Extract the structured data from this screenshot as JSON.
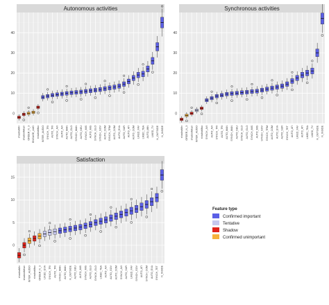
{
  "chart_data": [
    {
      "type": "box",
      "title": "Autonomous activities",
      "ylim": [
        -5,
        50
      ],
      "yticks": [
        0,
        10,
        20,
        30,
        40
      ],
      "categories": [
        "shadowMin",
        "shadowMean",
        "ORDER_N_3",
        "ENGAGE_AUD",
        "shadowMax",
        "INTER_AUDIO",
        "SYNCH_TRI",
        "AUTO_TRI",
        "SYNCH_AVI",
        "AUTO_AVI",
        "AUTO_MAN",
        "AUTO_GLO",
        "SYNCH_MAN",
        "AUTO_NEU",
        "SYNCH_MIS",
        "AUTO_MIS",
        "SYNCH_GLO",
        "SYNCH_GOV",
        "AUTO_COM",
        "SYNCH_TRM",
        "AUTO_COM",
        "AUTO_EXA",
        "AUTO_SUR",
        "AUTO_ATI",
        "AUTO_COM",
        "LIKED_FAV",
        "LIKED_TBA",
        "AUTO_MIN",
        "LIKED_TV",
        "N_OUTSIDE",
        "N_INSIDE"
      ],
      "medians": [
        -2,
        -0.5,
        0,
        0.5,
        3,
        8,
        8.5,
        9,
        9.3,
        9.6,
        9.9,
        10.2,
        10.4,
        10.6,
        10.9,
        11.2,
        11.5,
        11.8,
        12.2,
        12.6,
        13,
        13.5,
        14.5,
        15.8,
        17.5,
        19,
        19.5,
        22,
        26,
        33,
        45
      ],
      "feature_type": [
        "shadow",
        "shadow",
        "unimportant",
        "unimportant",
        "shadow",
        "important",
        "important",
        "important",
        "important",
        "important",
        "important",
        "important",
        "important",
        "important",
        "important",
        "important",
        "important",
        "important",
        "important",
        "important",
        "important",
        "important",
        "important",
        "important",
        "important",
        "important",
        "important",
        "important",
        "important",
        "important",
        "important"
      ]
    },
    {
      "type": "box",
      "title": "Synchronous activities",
      "ylim": [
        -5,
        50
      ],
      "yticks": [
        0,
        10,
        20,
        30,
        40
      ],
      "categories": [
        "shadowMin",
        "ORDER_N_3",
        "shadowMean",
        "INTER_AUDIO",
        "shadowMax",
        "SYNCH_AVI",
        "AUTO_AVI",
        "SYNCH_TRI",
        "AUTO_TRI",
        "AUTO_MAN",
        "SYNCH_MAN",
        "AUTO_NEU",
        "SYNCH_GLO",
        "AUTO_GLO",
        "SYNCH_MIS",
        "AUTO_MIS",
        "SYNCH_GOV",
        "SYNCH_TRM",
        "AUTO_COM",
        "AUTO_EXA",
        "AUTO_SUR",
        "SYNCH_TET",
        "AUTO_ATI",
        "LIKED_FAV",
        "AUTO_ATI",
        "LIKED_TBA",
        "LIKED_TV",
        "N_OUTSIDE",
        "N_INSIDE"
      ],
      "medians": [
        -3,
        -1,
        0,
        1.5,
        2.5,
        6.5,
        7.5,
        8.5,
        9,
        9.5,
        9.8,
        10,
        10.3,
        10.5,
        10.8,
        11,
        11.5,
        12,
        12.5,
        13,
        13.5,
        14.5,
        16,
        17.5,
        19,
        20,
        21,
        30,
        47
      ],
      "feature_type": [
        "shadow",
        "unimportant",
        "shadow",
        "tentative",
        "shadow",
        "important",
        "important",
        "important",
        "important",
        "important",
        "important",
        "important",
        "important",
        "important",
        "important",
        "important",
        "important",
        "important",
        "important",
        "important",
        "important",
        "important",
        "important",
        "important",
        "important",
        "important",
        "important",
        "important",
        "important"
      ]
    },
    {
      "type": "box",
      "title": "Satisfaction",
      "ylim": [
        -4,
        18
      ],
      "yticks": [
        0,
        5,
        10,
        15
      ],
      "categories": [
        "shadowMin",
        "shadowMean",
        "INTER_AUDIO",
        "shadowMax",
        "ORDER_N_3",
        "LIKED_EXA",
        "SYNCH_TRI",
        "AUTO_TRI",
        "SYNCH_MAN",
        "AUTO_MAN",
        "N_OUTSIDE",
        "AUTO_NEU",
        "AUTO_MIS",
        "SYNCH_MIS",
        "AUTO_GLO",
        "SYNCH_GLO",
        "LIKED_TBA",
        "AUTO_AVI",
        "AUTO_GOV",
        "AUTO_COM",
        "SYNCH_AVI",
        "AUTO_SUR",
        "LIKED_FAV",
        "SYNCH_GOV",
        "AUTO_ATI",
        "SYNCH_COM",
        "AUTO_EXA",
        "SYNCH_TET",
        "N_INSIDE"
      ],
      "medians": [
        -2.2,
        0,
        1,
        1.5,
        2,
        2.5,
        2.8,
        3,
        3.2,
        3.4,
        3.6,
        3.8,
        4,
        4.3,
        4.6,
        5,
        5.3,
        5.6,
        6,
        6.4,
        6.8,
        7.2,
        7.6,
        8,
        8.5,
        9,
        9.6,
        10.5,
        15.5
      ],
      "feature_type": [
        "shadow",
        "shadow",
        "unimportant",
        "shadow",
        "unimportant",
        "tentative",
        "tentative",
        "tentative",
        "important",
        "important",
        "important",
        "important",
        "important",
        "important",
        "important",
        "important",
        "important",
        "important",
        "important",
        "important",
        "important",
        "important",
        "important",
        "important",
        "important",
        "important",
        "important",
        "important",
        "important"
      ]
    }
  ],
  "legend": {
    "title": "Feature type",
    "items": [
      {
        "key": "important",
        "label": "Confirmed important",
        "color": "#5b5fe6"
      },
      {
        "key": "tentative",
        "label": "Tentative",
        "color": "#c7c8ef"
      },
      {
        "key": "shadow",
        "label": "Shadow",
        "color": "#e0231c"
      },
      {
        "key": "unimportant",
        "label": "Confirmed unimportant",
        "color": "#f6b13c"
      }
    ]
  }
}
